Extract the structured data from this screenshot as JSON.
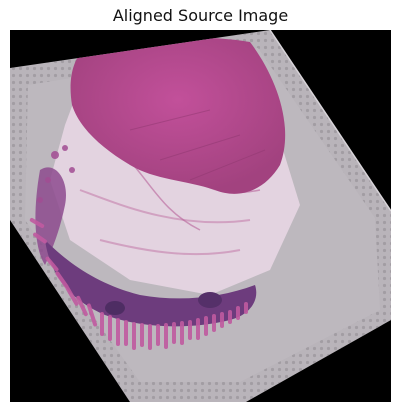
{
  "figure": {
    "title": "Aligned Source Image",
    "image_description_icon": "tissue-slide-image",
    "colors": {
      "background": "#000000",
      "slide": "#b9b4ba",
      "tissue_pink": "#b54b8c",
      "tissue_dark": "#6d3c7d",
      "fibers": "#e6d5e3"
    }
  }
}
